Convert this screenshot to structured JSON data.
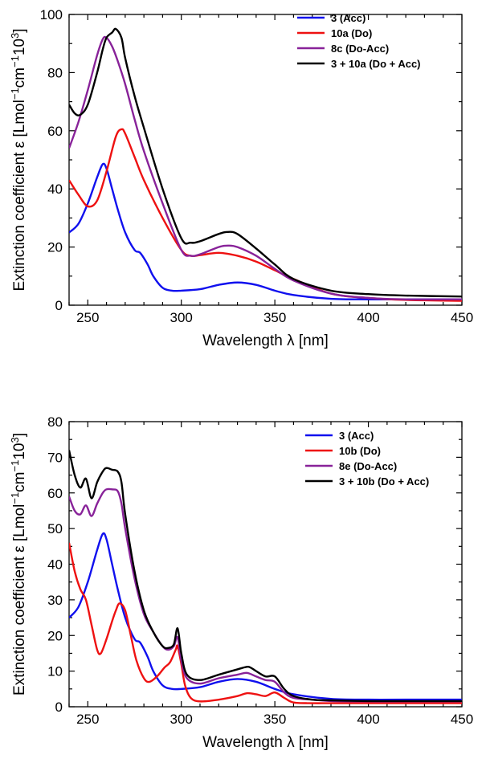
{
  "chart_data": [
    {
      "type": "line",
      "xlabel_text": "Wavelength ",
      "xlabel_symbol": "λ",
      "xlabel_unit": " [nm]",
      "ylabel_text": "Extinction coefficient ε [Lmol",
      "ylabel_sup1": "−1",
      "ylabel_mid": "cm",
      "ylabel_sup2": "−1",
      "ylabel_end": "10",
      "ylabel_sup3": "3",
      "ylabel_close": "]",
      "xlim": [
        240,
        450
      ],
      "ylim": [
        0,
        100
      ],
      "xticks": [
        250,
        300,
        350,
        400,
        450
      ],
      "yticks": [
        0,
        20,
        40,
        60,
        80,
        100
      ],
      "legend": "top-right",
      "series": [
        {
          "name": "3 (Acc)",
          "color": "#1010ee",
          "x": [
            240,
            245,
            250,
            255,
            258,
            260,
            263,
            266,
            270,
            275,
            278,
            282,
            285,
            290,
            295,
            300,
            310,
            320,
            330,
            340,
            350,
            360,
            380,
            400,
            420,
            450
          ],
          "y": [
            25,
            28,
            35,
            44,
            48.5,
            47,
            40,
            33,
            25,
            19,
            18,
            14,
            10,
            6,
            5,
            5,
            5.5,
            7,
            7.8,
            7,
            5,
            3.5,
            2.2,
            2,
            2,
            2
          ]
        },
        {
          "name": "10a (Do)",
          "color": "#ee1111",
          "x": [
            240,
            245,
            250,
            255,
            260,
            265,
            268,
            270,
            275,
            280,
            290,
            300,
            305,
            310,
            320,
            330,
            340,
            350,
            360,
            380,
            400,
            420,
            450
          ],
          "y": [
            43,
            38,
            34,
            36,
            46,
            58,
            60.5,
            59,
            51,
            43,
            30,
            19,
            17,
            17.2,
            18,
            17,
            15,
            12,
            9,
            4,
            2.5,
            1.8,
            1.5
          ]
        },
        {
          "name": "8c (Do-Acc)",
          "color": "#882299",
          "x": [
            240,
            245,
            250,
            255,
            258,
            260,
            263,
            266,
            270,
            275,
            280,
            290,
            300,
            305,
            310,
            320,
            325,
            330,
            340,
            350,
            360,
            380,
            400,
            420,
            450
          ],
          "y": [
            54,
            63,
            74,
            86,
            91.5,
            92,
            89,
            84,
            76,
            64,
            53,
            35,
            19,
            17,
            17.5,
            20,
            20.5,
            20,
            17,
            12.5,
            8.5,
            4,
            2.5,
            2,
            2
          ]
        },
        {
          "name": "3 + 10a (Do + Acc)",
          "color": "#000000",
          "x": [
            240,
            243,
            246,
            250,
            255,
            258,
            260,
            263,
            265,
            268,
            270,
            275,
            280,
            290,
            300,
            305,
            310,
            320,
            325,
            330,
            340,
            350,
            360,
            380,
            400,
            420,
            450
          ],
          "y": [
            69,
            66,
            65.5,
            69,
            80,
            88,
            92,
            93.8,
            95,
            92,
            85,
            72,
            61,
            40,
            23,
            21.5,
            22,
            24.5,
            25.2,
            24.5,
            19.5,
            14,
            9,
            5,
            3.8,
            3.3,
            3
          ]
        }
      ]
    },
    {
      "type": "line",
      "xlabel_text": "Wavelength ",
      "xlabel_symbol": "λ",
      "xlabel_unit": " [nm]",
      "ylabel_text": "Extinction coefficient ε [Lmol",
      "ylabel_sup1": "−1",
      "ylabel_mid": "cm",
      "ylabel_sup2": "−1",
      "ylabel_end": "10",
      "ylabel_sup3": "3",
      "ylabel_close": "]",
      "xlim": [
        240,
        450
      ],
      "ylim": [
        0,
        80
      ],
      "xticks": [
        250,
        300,
        350,
        400,
        450
      ],
      "yticks": [
        0,
        10,
        20,
        30,
        40,
        50,
        60,
        70,
        80
      ],
      "legend": "top-right",
      "series": [
        {
          "name": "3 (Acc)",
          "color": "#1010ee",
          "x": [
            240,
            245,
            250,
            255,
            258,
            260,
            263,
            266,
            270,
            275,
            278,
            282,
            285,
            290,
            295,
            300,
            310,
            320,
            330,
            340,
            350,
            360,
            380,
            400,
            420,
            450
          ],
          "y": [
            25,
            28,
            35,
            44,
            48.5,
            47,
            40,
            33,
            25,
            19,
            18,
            14,
            10,
            6,
            5,
            5,
            5.5,
            7,
            7.8,
            7,
            5,
            3.5,
            2.2,
            2,
            2,
            2
          ]
        },
        {
          "name": "10b (Do)",
          "color": "#ee1111",
          "x": [
            240,
            243,
            246,
            249,
            252,
            255,
            257,
            260,
            263,
            265,
            267,
            270,
            273,
            276,
            280,
            283,
            287,
            291,
            294,
            297,
            298,
            300,
            302,
            305,
            310,
            320,
            330,
            335,
            340,
            345,
            350,
            355,
            360,
            370,
            380,
            400,
            420,
            450
          ],
          "y": [
            46,
            38,
            33,
            30,
            23,
            16,
            15,
            19,
            24,
            27,
            29,
            27,
            20,
            13,
            8,
            7,
            8.5,
            11,
            12.5,
            16,
            17,
            12,
            6,
            2.5,
            1.5,
            2,
            3,
            3.8,
            3.5,
            3,
            4,
            2.5,
            1.2,
            1,
            1,
            1,
            1,
            1
          ]
        },
        {
          "name": "8e (Do-Acc)",
          "color": "#882299",
          "x": [
            240,
            243,
            246,
            249,
            252,
            255,
            258,
            260,
            263,
            266,
            268,
            270,
            275,
            280,
            285,
            290,
            293,
            296,
            298,
            300,
            303,
            310,
            320,
            330,
            335,
            340,
            345,
            350,
            355,
            360,
            370,
            380,
            400,
            420,
            450
          ],
          "y": [
            59,
            55,
            54,
            56.5,
            53.5,
            57,
            60,
            61,
            61,
            60.5,
            57,
            50,
            36,
            26,
            21,
            17,
            16,
            17,
            19.5,
            13,
            8,
            6.5,
            8,
            9,
            9.5,
            8.5,
            7.5,
            7,
            4,
            2.5,
            2,
            1.6,
            1.5,
            1.5,
            1.5
          ]
        },
        {
          "name": "3 + 10b (Do + Acc)",
          "color": "#000000",
          "x": [
            240,
            243,
            246,
            249,
            252,
            255,
            258,
            260,
            263,
            266,
            268,
            270,
            275,
            280,
            285,
            290,
            293,
            296,
            298,
            300,
            303,
            310,
            320,
            330,
            335,
            337,
            340,
            345,
            350,
            355,
            360,
            370,
            380,
            400,
            420,
            450
          ],
          "y": [
            72,
            65,
            61.5,
            64,
            58.5,
            63,
            66,
            67,
            66.5,
            66,
            63,
            54,
            38,
            27,
            21,
            17,
            16.5,
            17.5,
            22,
            15,
            9,
            7.5,
            9,
            10.5,
            11.2,
            11,
            10,
            8.5,
            8.5,
            5,
            3,
            2,
            1.8,
            1.6,
            1.6,
            1.6
          ]
        }
      ]
    }
  ]
}
